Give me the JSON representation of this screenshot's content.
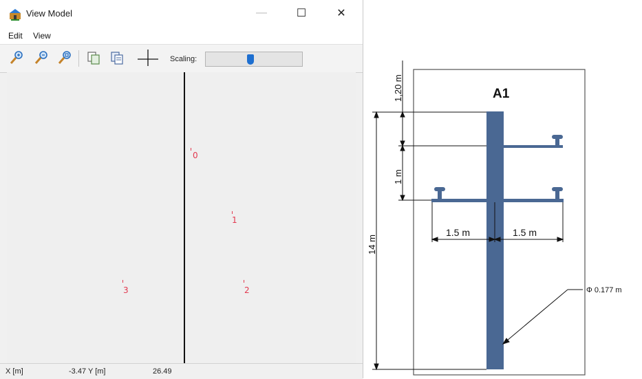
{
  "window": {
    "title": "View Model",
    "minimize_glyph": "—",
    "maximize_glyph": "☐",
    "close_glyph": "✕"
  },
  "menu": {
    "edit": "Edit",
    "view": "View"
  },
  "toolbar": {
    "scaling_label": "Scaling:",
    "scaling_value_fraction": 0.46,
    "icons": [
      "zoom-in-icon",
      "zoom-out-icon",
      "zoom-fit-icon",
      "copy-icon",
      "paste-icon",
      "crosshair-icon"
    ]
  },
  "canvas": {
    "points": [
      "0",
      "1",
      "2",
      "3"
    ]
  },
  "status": {
    "x_label": "X [m]",
    "x_value": "-3.47",
    "y_label": "Y [m]",
    "y_value": "26.49"
  },
  "diagram": {
    "title": "A1",
    "dim_top": "1,20 m",
    "dim_mid": "1 m",
    "dim_height": "14 m",
    "dim_left_arm": "1.5 m",
    "dim_right_arm": "1.5 m",
    "diameter": "Φ 0.177 m",
    "pole_color": "#4a6893"
  }
}
